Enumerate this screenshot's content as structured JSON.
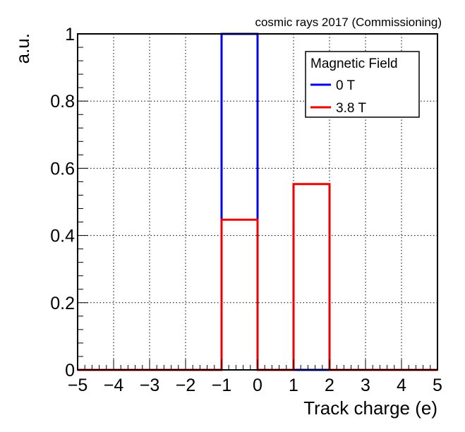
{
  "chart_data": {
    "type": "histogram",
    "title": "cosmic rays 2017 (Commissioning)",
    "xlabel": "Track charge (e)",
    "ylabel": "a.u.",
    "xlim": [
      -5,
      5
    ],
    "ylim": [
      0,
      1.0
    ],
    "xticks": [
      "−5",
      "−4",
      "−3",
      "−2",
      "−1",
      "0",
      "1",
      "2",
      "3",
      "4",
      "5"
    ],
    "yticks": [
      "0",
      "0.2",
      "0.4",
      "0.6",
      "0.8",
      "1"
    ],
    "bin_edges": [
      -5,
      -4,
      -3,
      -2,
      -1,
      0,
      1,
      2,
      3,
      4,
      5
    ],
    "grid": true,
    "legend": {
      "title": "Magnetic Field",
      "placement": "top-right"
    },
    "series": [
      {
        "name": "0 T",
        "color": "#0000ee",
        "values": [
          0,
          0,
          0,
          0,
          1.0,
          0,
          0,
          0,
          0,
          0
        ]
      },
      {
        "name": "3.8 T",
        "color": "#ee0000",
        "values": [
          0,
          0,
          0,
          0,
          0.447,
          0,
          0.553,
          0,
          0,
          0
        ]
      }
    ]
  }
}
